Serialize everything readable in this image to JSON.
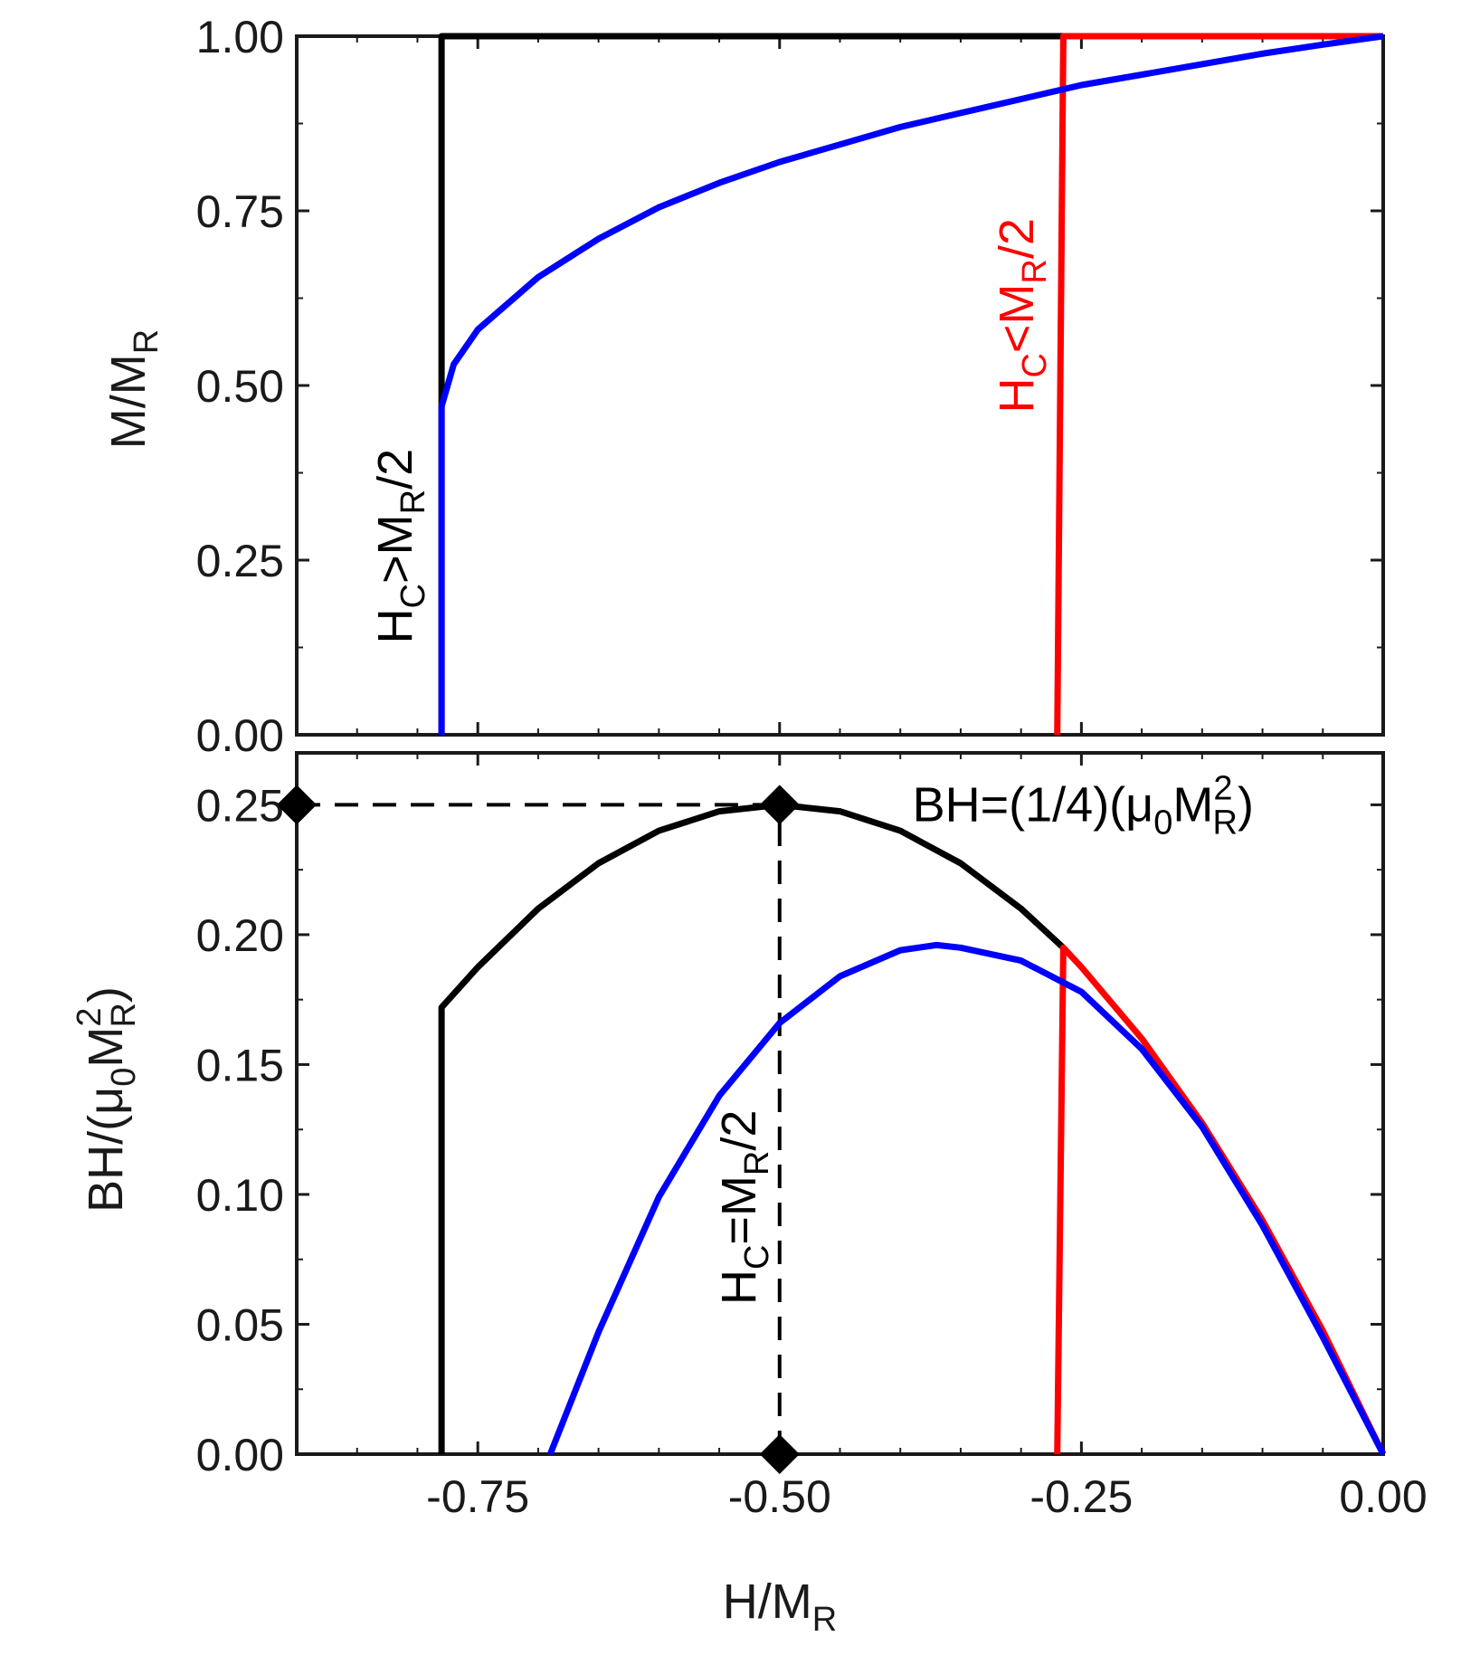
{
  "chart_data": [
    {
      "type": "line",
      "panel": "top",
      "ylabel": {
        "base": "M/M",
        "sub": "R"
      },
      "xlim": [
        -0.9,
        0.0
      ],
      "ylim": [
        0.0,
        1.0
      ],
      "yticks": [
        0.0,
        0.25,
        0.5,
        0.75,
        1.0
      ],
      "ytick_labels": [
        "0.00",
        "0.25",
        "0.50",
        "0.75",
        "1.00"
      ],
      "xticks": [
        -0.75,
        -0.5,
        -0.25,
        0.0
      ],
      "series": [
        {
          "color": "#000000",
          "x": [
            -0.78,
            -0.78,
            0.0
          ],
          "y": [
            0.0,
            1.0,
            1.0
          ]
        },
        {
          "color": "#ff0000",
          "x": [
            -0.27,
            -0.265,
            0.0
          ],
          "y": [
            0.0,
            1.0,
            1.0
          ]
        },
        {
          "color": "#0000ff",
          "x": [
            -0.78,
            -0.78,
            -0.77,
            -0.75,
            -0.7,
            -0.65,
            -0.6,
            -0.55,
            -0.5,
            -0.45,
            -0.4,
            -0.35,
            -0.3,
            -0.25,
            -0.2,
            -0.15,
            -0.1,
            -0.05,
            0.0
          ],
          "y": [
            0.0,
            0.47,
            0.53,
            0.58,
            0.655,
            0.71,
            0.755,
            0.79,
            0.82,
            0.845,
            0.87,
            0.89,
            0.91,
            0.93,
            0.945,
            0.96,
            0.975,
            0.988,
            1.0
          ]
        }
      ],
      "annotations": [
        {
          "color": "#000000",
          "base": "H",
          "sub1": "C",
          "mid": ">M",
          "sub2": "R",
          "tail": "/2",
          "x": -0.805,
          "y": 0.27
        },
        {
          "color": "#ff0000",
          "base": "H",
          "sub1": "C",
          "mid": "<M",
          "sub2": "R",
          "tail": "/2",
          "x": -0.29,
          "y": 0.6
        }
      ]
    },
    {
      "type": "line",
      "panel": "bottom",
      "ylabel": {
        "pre": "BH/(μ",
        "sub0": "0",
        "mid": "M",
        "sup": "2",
        "sub": "R",
        "post": ")"
      },
      "xlabel": {
        "base": "H/M",
        "sub": "R"
      },
      "xlim": [
        -0.9,
        0.0
      ],
      "ylim": [
        0.0,
        0.27
      ],
      "yticks": [
        0.0,
        0.05,
        0.1,
        0.15,
        0.2,
        0.25
      ],
      "ytick_labels": [
        "0.00",
        "0.05",
        "0.10",
        "0.15",
        "0.20",
        "0.25"
      ],
      "xticks": [
        -0.75,
        -0.5,
        -0.25,
        0.0
      ],
      "xtick_labels": [
        "-0.75",
        "-0.50",
        "-0.25",
        "0.00"
      ],
      "series": [
        {
          "color": "#000000",
          "x": [
            -0.78,
            -0.78,
            -0.75,
            -0.7,
            -0.65,
            -0.6,
            -0.55,
            -0.5,
            -0.45,
            -0.4,
            -0.35,
            -0.3,
            -0.265
          ],
          "y": [
            0.0,
            0.172,
            0.1875,
            0.21,
            0.2275,
            0.24,
            0.2475,
            0.25,
            0.2475,
            0.24,
            0.2275,
            0.21,
            0.195
          ]
        },
        {
          "color": "#ff0000",
          "x": [
            -0.27,
            -0.265,
            -0.25,
            -0.2,
            -0.15,
            -0.1,
            -0.05,
            0.0
          ],
          "y": [
            0.0,
            0.195,
            0.1875,
            0.16,
            0.1275,
            0.09,
            0.0475,
            0.0
          ]
        },
        {
          "color": "#0000ff",
          "x": [
            -0.69,
            -0.65,
            -0.6,
            -0.55,
            -0.5,
            -0.45,
            -0.4,
            -0.37,
            -0.35,
            -0.3,
            -0.25,
            -0.2,
            -0.15,
            -0.1,
            -0.05,
            0.0
          ],
          "y": [
            0.0,
            0.047,
            0.099,
            0.138,
            0.166,
            0.184,
            0.194,
            0.196,
            0.195,
            0.19,
            0.178,
            0.156,
            0.126,
            0.088,
            0.045,
            0.0
          ]
        }
      ],
      "guides": {
        "hline": {
          "y": 0.25,
          "x_from": -0.9,
          "x_to": -0.5
        },
        "vline": {
          "x": -0.5,
          "y_from": 0.0,
          "y_to": 0.25
        },
        "markers": [
          {
            "x": -0.5,
            "y": 0.25
          },
          {
            "x": -0.9,
            "y": 0.25
          },
          {
            "x": -0.5,
            "y": 0.0
          }
        ]
      },
      "annotations": [
        {
          "color": "#000000",
          "orient": "vertical",
          "base": "H",
          "sub1": "C",
          "mid": "=M",
          "sub2": "R",
          "tail": "/2",
          "x": -0.52,
          "y": 0.095
        },
        {
          "color": "#000000",
          "orient": "horizontal",
          "pre": "BH=(1/4)(μ",
          "sub0": "0",
          "mid": "M",
          "sup": "2",
          "sub": "R",
          "post": ")",
          "x": -0.39,
          "y": 0.25
        }
      ]
    }
  ]
}
